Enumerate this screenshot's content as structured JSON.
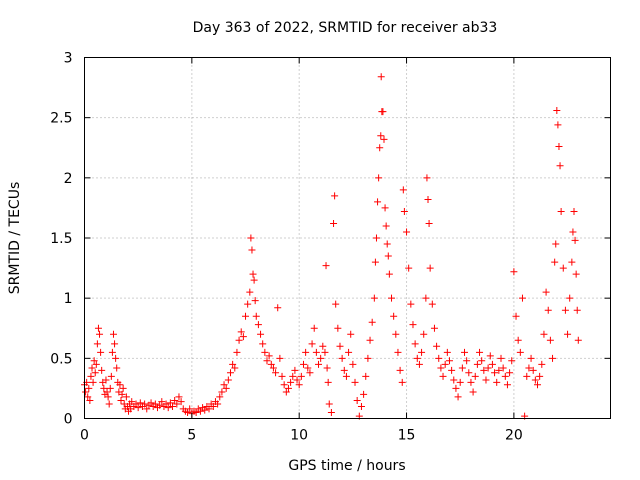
{
  "chart_data": {
    "type": "scatter",
    "title": "Day 363 of 2022, SRMTID for receiver ab33",
    "xlabel": "GPS time / hours",
    "ylabel": "SRMTID / TECUs",
    "xlim": [
      0,
      24.5
    ],
    "ylim": [
      0,
      3
    ],
    "xticks": [
      0,
      5,
      10,
      15,
      20
    ],
    "xtick_labels": [
      "0",
      "5",
      "10",
      "15",
      "20"
    ],
    "yticks": [
      0,
      0.5,
      1,
      1.5,
      2,
      2.5,
      3
    ],
    "ytick_labels": [
      "0",
      "0.5",
      "1",
      "1.5",
      "2",
      "2.5",
      "3"
    ],
    "grid": true,
    "marker": "+",
    "color": "#ff0000",
    "series": [
      {
        "name": "SRMTID",
        "points": [
          [
            0.0,
            0.28
          ],
          [
            0.05,
            0.22
          ],
          [
            0.1,
            0.3
          ],
          [
            0.15,
            0.18
          ],
          [
            0.2,
            0.25
          ],
          [
            0.25,
            0.15
          ],
          [
            0.3,
            0.35
          ],
          [
            0.35,
            0.42
          ],
          [
            0.4,
            0.3
          ],
          [
            0.45,
            0.48
          ],
          [
            0.5,
            0.38
          ],
          [
            0.55,
            0.45
          ],
          [
            0.6,
            0.62
          ],
          [
            0.65,
            0.75
          ],
          [
            0.7,
            0.7
          ],
          [
            0.75,
            0.55
          ],
          [
            0.8,
            0.4
          ],
          [
            0.85,
            0.3
          ],
          [
            0.9,
            0.25
          ],
          [
            0.95,
            0.2
          ],
          [
            1.0,
            0.32
          ],
          [
            1.05,
            0.22
          ],
          [
            1.1,
            0.18
          ],
          [
            1.15,
            0.12
          ],
          [
            1.2,
            0.25
          ],
          [
            1.25,
            0.35
          ],
          [
            1.3,
            0.55
          ],
          [
            1.35,
            0.7
          ],
          [
            1.4,
            0.62
          ],
          [
            1.45,
            0.5
          ],
          [
            1.5,
            0.42
          ],
          [
            1.55,
            0.3
          ],
          [
            1.6,
            0.22
          ],
          [
            1.65,
            0.28
          ],
          [
            1.7,
            0.15
          ],
          [
            1.75,
            0.2
          ],
          [
            1.8,
            0.25
          ],
          [
            1.85,
            0.12
          ],
          [
            1.9,
            0.08
          ],
          [
            1.95,
            0.18
          ],
          [
            2.0,
            0.1
          ],
          [
            2.05,
            0.06
          ],
          [
            2.1,
            0.12
          ],
          [
            2.15,
            0.08
          ],
          [
            2.2,
            0.14
          ],
          [
            2.3,
            0.1
          ],
          [
            2.4,
            0.12
          ],
          [
            2.5,
            0.09
          ],
          [
            2.6,
            0.13
          ],
          [
            2.7,
            0.1
          ],
          [
            2.8,
            0.12
          ],
          [
            2.9,
            0.08
          ],
          [
            3.0,
            0.11
          ],
          [
            3.1,
            0.13
          ],
          [
            3.2,
            0.1
          ],
          [
            3.3,
            0.12
          ],
          [
            3.4,
            0.09
          ],
          [
            3.5,
            0.11
          ],
          [
            3.6,
            0.14
          ],
          [
            3.7,
            0.1
          ],
          [
            3.8,
            0.12
          ],
          [
            3.9,
            0.09
          ],
          [
            4.0,
            0.13
          ],
          [
            4.1,
            0.1
          ],
          [
            4.2,
            0.15
          ],
          [
            4.3,
            0.12
          ],
          [
            4.4,
            0.18
          ],
          [
            4.5,
            0.14
          ],
          [
            4.6,
            0.08
          ],
          [
            4.7,
            0.06
          ],
          [
            4.8,
            0.05
          ],
          [
            4.9,
            0.08
          ],
          [
            5.0,
            0.04
          ],
          [
            5.1,
            0.06
          ],
          [
            5.2,
            0.05
          ],
          [
            5.3,
            0.08
          ],
          [
            5.4,
            0.06
          ],
          [
            5.5,
            0.09
          ],
          [
            5.6,
            0.07
          ],
          [
            5.7,
            0.1
          ],
          [
            5.8,
            0.08
          ],
          [
            5.9,
            0.12
          ],
          [
            6.0,
            0.1
          ],
          [
            6.1,
            0.14
          ],
          [
            6.2,
            0.12
          ],
          [
            6.3,
            0.18
          ],
          [
            6.4,
            0.22
          ],
          [
            6.5,
            0.28
          ],
          [
            6.6,
            0.25
          ],
          [
            6.7,
            0.32
          ],
          [
            6.8,
            0.38
          ],
          [
            6.9,
            0.45
          ],
          [
            7.0,
            0.42
          ],
          [
            7.1,
            0.55
          ],
          [
            7.2,
            0.65
          ],
          [
            7.3,
            0.72
          ],
          [
            7.4,
            0.68
          ],
          [
            7.5,
            0.85
          ],
          [
            7.6,
            0.95
          ],
          [
            7.7,
            1.05
          ],
          [
            7.75,
            1.5
          ],
          [
            7.8,
            1.4
          ],
          [
            7.85,
            1.2
          ],
          [
            7.9,
            1.15
          ],
          [
            7.95,
            0.98
          ],
          [
            8.0,
            0.85
          ],
          [
            8.1,
            0.78
          ],
          [
            8.2,
            0.7
          ],
          [
            8.3,
            0.62
          ],
          [
            8.4,
            0.55
          ],
          [
            8.5,
            0.48
          ],
          [
            8.6,
            0.52
          ],
          [
            8.7,
            0.45
          ],
          [
            8.8,
            0.42
          ],
          [
            8.9,
            0.38
          ],
          [
            9.0,
            0.92
          ],
          [
            9.1,
            0.5
          ],
          [
            9.2,
            0.35
          ],
          [
            9.3,
            0.28
          ],
          [
            9.4,
            0.22
          ],
          [
            9.5,
            0.25
          ],
          [
            9.6,
            0.3
          ],
          [
            9.7,
            0.35
          ],
          [
            9.8,
            0.4
          ],
          [
            9.9,
            0.32
          ],
          [
            10.0,
            0.28
          ],
          [
            10.1,
            0.35
          ],
          [
            10.2,
            0.45
          ],
          [
            10.3,
            0.55
          ],
          [
            10.4,
            0.42
          ],
          [
            10.5,
            0.38
          ],
          [
            10.6,
            0.62
          ],
          [
            10.7,
            0.75
          ],
          [
            10.8,
            0.55
          ],
          [
            10.9,
            0.45
          ],
          [
            11.0,
            0.5
          ],
          [
            11.1,
            0.6
          ],
          [
            11.2,
            0.55
          ],
          [
            11.25,
            1.27
          ],
          [
            11.3,
            0.42
          ],
          [
            11.35,
            0.3
          ],
          [
            11.4,
            0.12
          ],
          [
            11.5,
            0.05
          ],
          [
            11.6,
            1.62
          ],
          [
            11.65,
            1.85
          ],
          [
            11.7,
            0.95
          ],
          [
            11.8,
            0.75
          ],
          [
            11.9,
            0.6
          ],
          [
            12.0,
            0.5
          ],
          [
            12.1,
            0.4
          ],
          [
            12.2,
            0.35
          ],
          [
            12.3,
            0.55
          ],
          [
            12.4,
            0.7
          ],
          [
            12.5,
            0.45
          ],
          [
            12.6,
            0.3
          ],
          [
            12.7,
            0.15
          ],
          [
            12.8,
            0.02
          ],
          [
            12.9,
            0.1
          ],
          [
            13.0,
            0.2
          ],
          [
            13.1,
            0.35
          ],
          [
            13.2,
            0.5
          ],
          [
            13.3,
            0.65
          ],
          [
            13.4,
            0.8
          ],
          [
            13.5,
            1.0
          ],
          [
            13.55,
            1.3
          ],
          [
            13.6,
            1.5
          ],
          [
            13.65,
            1.8
          ],
          [
            13.7,
            2.0
          ],
          [
            13.75,
            2.25
          ],
          [
            13.8,
            2.35
          ],
          [
            13.82,
            2.84
          ],
          [
            13.85,
            2.55
          ],
          [
            13.9,
            2.55
          ],
          [
            13.95,
            2.32
          ],
          [
            14.0,
            1.75
          ],
          [
            14.05,
            1.6
          ],
          [
            14.1,
            1.45
          ],
          [
            14.15,
            1.35
          ],
          [
            14.2,
            1.2
          ],
          [
            14.3,
            1.0
          ],
          [
            14.4,
            0.85
          ],
          [
            14.5,
            0.7
          ],
          [
            14.6,
            0.55
          ],
          [
            14.7,
            0.4
          ],
          [
            14.8,
            0.3
          ],
          [
            14.85,
            1.9
          ],
          [
            14.9,
            1.72
          ],
          [
            15.0,
            1.55
          ],
          [
            15.1,
            1.25
          ],
          [
            15.2,
            0.95
          ],
          [
            15.3,
            0.78
          ],
          [
            15.4,
            0.62
          ],
          [
            15.5,
            0.5
          ],
          [
            15.6,
            0.45
          ],
          [
            15.7,
            0.55
          ],
          [
            15.8,
            0.7
          ],
          [
            15.9,
            1.0
          ],
          [
            15.95,
            2.0
          ],
          [
            16.0,
            1.82
          ],
          [
            16.05,
            1.62
          ],
          [
            16.1,
            1.25
          ],
          [
            16.2,
            0.95
          ],
          [
            16.3,
            0.75
          ],
          [
            16.4,
            0.6
          ],
          [
            16.5,
            0.5
          ],
          [
            16.6,
            0.42
          ],
          [
            16.7,
            0.35
          ],
          [
            16.8,
            0.45
          ],
          [
            16.9,
            0.55
          ],
          [
            17.0,
            0.48
          ],
          [
            17.1,
            0.4
          ],
          [
            17.2,
            0.32
          ],
          [
            17.3,
            0.25
          ],
          [
            17.4,
            0.18
          ],
          [
            17.5,
            0.3
          ],
          [
            17.6,
            0.42
          ],
          [
            17.7,
            0.55
          ],
          [
            17.8,
            0.48
          ],
          [
            17.9,
            0.38
          ],
          [
            18.0,
            0.3
          ],
          [
            18.1,
            0.22
          ],
          [
            18.2,
            0.35
          ],
          [
            18.3,
            0.45
          ],
          [
            18.4,
            0.55
          ],
          [
            18.5,
            0.48
          ],
          [
            18.6,
            0.4
          ],
          [
            18.7,
            0.32
          ],
          [
            18.8,
            0.42
          ],
          [
            18.9,
            0.52
          ],
          [
            19.0,
            0.45
          ],
          [
            19.1,
            0.38
          ],
          [
            19.2,
            0.3
          ],
          [
            19.3,
            0.4
          ],
          [
            19.4,
            0.5
          ],
          [
            19.5,
            0.42
          ],
          [
            19.6,
            0.35
          ],
          [
            19.7,
            0.28
          ],
          [
            19.8,
            0.38
          ],
          [
            19.9,
            0.48
          ],
          [
            20.0,
            1.22
          ],
          [
            20.1,
            0.85
          ],
          [
            20.2,
            0.65
          ],
          [
            20.3,
            0.55
          ],
          [
            20.4,
            1.0
          ],
          [
            20.5,
            0.02
          ],
          [
            20.6,
            0.35
          ],
          [
            20.7,
            0.42
          ],
          [
            20.8,
            0.5
          ],
          [
            20.9,
            0.4
          ],
          [
            21.0,
            0.32
          ],
          [
            21.1,
            0.28
          ],
          [
            21.2,
            0.35
          ],
          [
            21.3,
            0.45
          ],
          [
            21.4,
            0.7
          ],
          [
            21.5,
            1.05
          ],
          [
            21.6,
            0.9
          ],
          [
            21.7,
            0.65
          ],
          [
            21.8,
            0.5
          ],
          [
            21.9,
            1.3
          ],
          [
            21.95,
            1.45
          ],
          [
            22.0,
            2.56
          ],
          [
            22.05,
            2.44
          ],
          [
            22.1,
            2.26
          ],
          [
            22.15,
            2.1
          ],
          [
            22.2,
            1.72
          ],
          [
            22.3,
            1.25
          ],
          [
            22.4,
            0.9
          ],
          [
            22.5,
            0.7
          ],
          [
            22.6,
            1.0
          ],
          [
            22.7,
            1.3
          ],
          [
            22.75,
            1.55
          ],
          [
            22.8,
            1.72
          ],
          [
            22.85,
            1.48
          ],
          [
            22.9,
            1.2
          ],
          [
            22.95,
            0.9
          ],
          [
            23.0,
            0.65
          ]
        ]
      }
    ]
  }
}
